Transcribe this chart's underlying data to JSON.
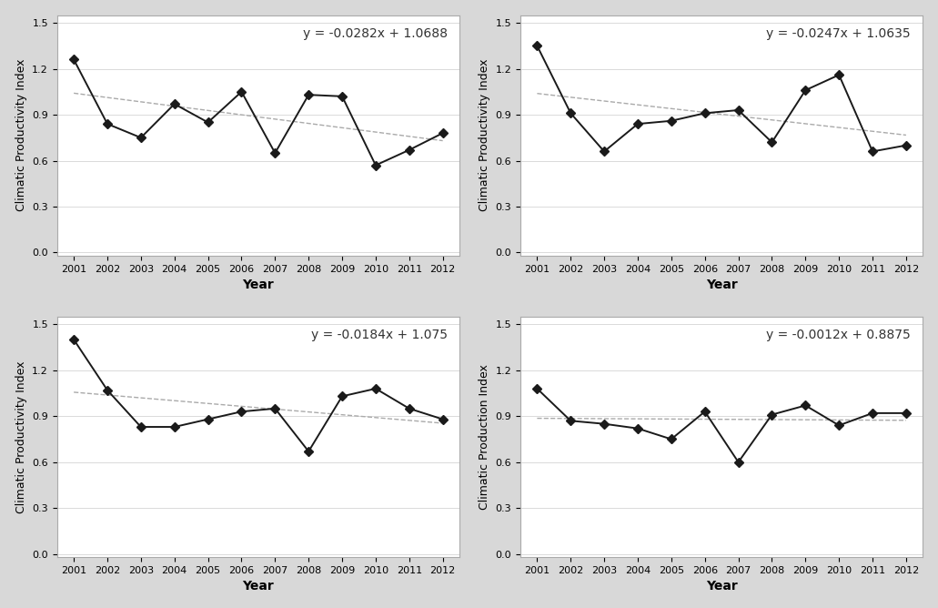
{
  "subplots": [
    {
      "ylabel": "Climatic Productivity Index",
      "equation": "y = -0.0282x + 1.0688",
      "values": [
        1.26,
        0.84,
        0.75,
        0.97,
        0.85,
        1.05,
        0.65,
        1.03,
        1.02,
        0.57,
        0.67,
        0.78
      ],
      "slope": -0.0282,
      "intercept": 1.0688
    },
    {
      "ylabel": "Climatic Productivity Index",
      "equation": "y = -0.0247x + 1.0635",
      "values": [
        1.35,
        0.91,
        0.66,
        0.84,
        0.86,
        0.91,
        0.93,
        0.72,
        1.06,
        1.16,
        0.66,
        0.7
      ],
      "slope": -0.0247,
      "intercept": 1.0635
    },
    {
      "ylabel": "Climatic Productivity Index",
      "equation": "y = -0.0184x + 1.075",
      "values": [
        1.4,
        1.07,
        0.83,
        0.83,
        0.88,
        0.93,
        0.95,
        0.67,
        1.03,
        1.08,
        0.95,
        0.88
      ],
      "slope": -0.0184,
      "intercept": 1.075
    },
    {
      "ylabel": "Climatic Production Index",
      "equation": "y = -0.0012x + 0.8875",
      "values": [
        1.08,
        0.87,
        0.85,
        0.82,
        0.75,
        0.93,
        0.6,
        0.91,
        0.97,
        0.84,
        0.92,
        0.92
      ],
      "slope": -0.0012,
      "intercept": 0.8875
    }
  ],
  "xlabel": "Year",
  "yticks": [
    0.0,
    0.3,
    0.6,
    0.9,
    1.2,
    1.5
  ],
  "ylim": [
    -0.02,
    1.55
  ],
  "xlim": [
    2000.5,
    2012.5
  ],
  "fig_facecolor": "#d8d8d8",
  "ax_facecolor": "#ffffff",
  "line_color": "#1a1a1a",
  "trend_color": "#aaaaaa",
  "marker": "D",
  "marker_size": 5,
  "line_width": 1.4,
  "trend_linewidth": 1.0,
  "equation_fontsize": 10,
  "ylabel_fontsize": 9,
  "xlabel_fontsize": 10,
  "tick_fontsize": 8,
  "grid_color": "#cccccc",
  "grid_linewidth": 0.5
}
